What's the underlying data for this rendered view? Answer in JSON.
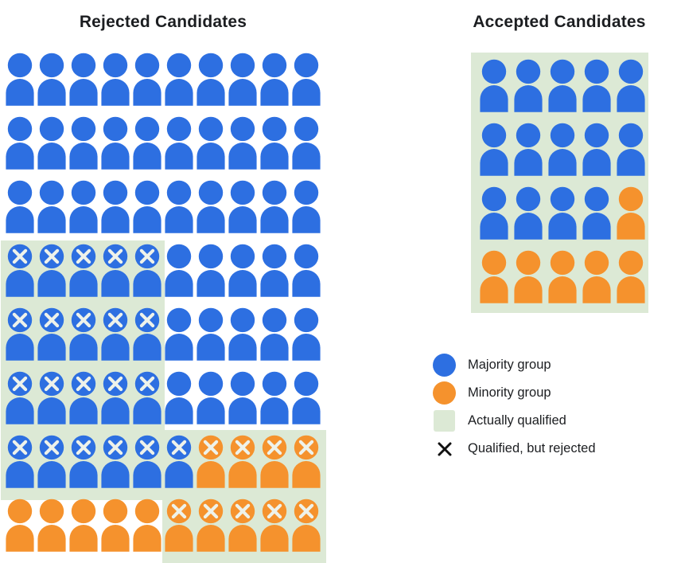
{
  "titles": {
    "rejected": "Rejected Candidates",
    "accepted": "Accepted Candidates"
  },
  "colors": {
    "majority": "#2d6fe1",
    "minority": "#f5922d",
    "qualified_bg": "#dce9d5",
    "x_on_icon": "#eef2ea",
    "legend_x": "#111111",
    "text": "#1c1e21"
  },
  "rejected_grid": {
    "rows": [
      [
        "b",
        "b",
        "b",
        "b",
        "b",
        "b",
        "b",
        "b",
        "b",
        "b"
      ],
      [
        "b",
        "b",
        "b",
        "b",
        "b",
        "b",
        "b",
        "b",
        "b",
        "b"
      ],
      [
        "b",
        "b",
        "b",
        "b",
        "b",
        "b",
        "b",
        "b",
        "b",
        "b"
      ],
      [
        "bx",
        "bx",
        "bx",
        "bx",
        "bx",
        "b",
        "b",
        "b",
        "b",
        "b"
      ],
      [
        "bx",
        "bx",
        "bx",
        "bx",
        "bx",
        "b",
        "b",
        "b",
        "b",
        "b"
      ],
      [
        "bx",
        "bx",
        "bx",
        "bx",
        "bx",
        "b",
        "b",
        "b",
        "b",
        "b"
      ],
      [
        "bx",
        "bx",
        "bx",
        "bx",
        "bx",
        "bx",
        "ox",
        "ox",
        "ox",
        "ox"
      ],
      [
        "o",
        "o",
        "o",
        "o",
        "o",
        "ox",
        "ox",
        "ox",
        "ox",
        "ox"
      ]
    ]
  },
  "accepted_grid": {
    "rows": [
      [
        "b",
        "b",
        "b",
        "b",
        "b"
      ],
      [
        "b",
        "b",
        "b",
        "b",
        "b"
      ],
      [
        "b",
        "b",
        "b",
        "b",
        "o"
      ],
      [
        "o",
        "o",
        "o",
        "o",
        "o"
      ]
    ]
  },
  "legend": {
    "items": [
      {
        "icon": "majority-circle",
        "label": "Majority group"
      },
      {
        "icon": "minority-circle",
        "label": "Minority group"
      },
      {
        "icon": "qualified-square",
        "label": "Actually qualified"
      },
      {
        "icon": "x-mark",
        "label": "Qualified, but rejected"
      }
    ]
  }
}
